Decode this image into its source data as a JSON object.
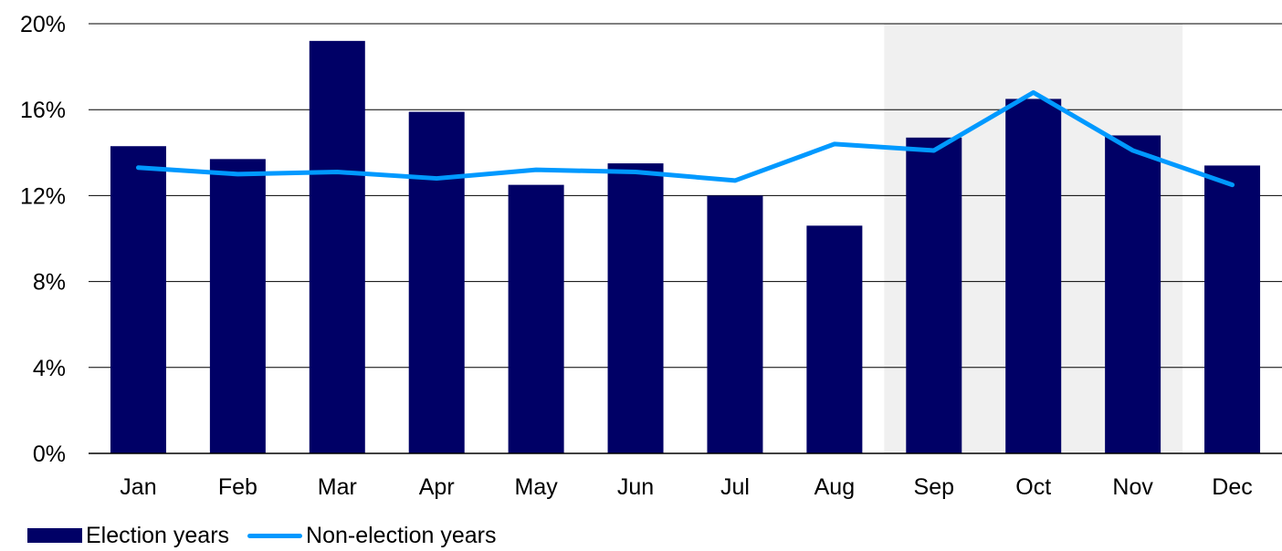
{
  "chart_data": {
    "type": "bar",
    "categories": [
      "Jan",
      "Feb",
      "Mar",
      "Apr",
      "May",
      "Jun",
      "Jul",
      "Aug",
      "Sep",
      "Oct",
      "Nov",
      "Dec"
    ],
    "series": [
      {
        "name": "Election years",
        "type": "bar",
        "color": "#000066",
        "values": [
          14.3,
          13.7,
          19.2,
          15.9,
          12.5,
          13.5,
          12.0,
          10.6,
          14.7,
          16.5,
          14.8,
          13.4
        ]
      },
      {
        "name": "Non-election years",
        "type": "line",
        "color": "#0099ff",
        "values": [
          13.3,
          13.0,
          13.1,
          12.8,
          13.2,
          13.1,
          12.7,
          14.4,
          14.1,
          16.8,
          14.1,
          12.5
        ]
      }
    ],
    "ylim": [
      0,
      20
    ],
    "yticks": [
      "0%",
      "4%",
      "8%",
      "12%",
      "16%",
      "20%"
    ],
    "ytick_values": [
      0,
      4,
      8,
      12,
      16,
      20
    ],
    "highlight": {
      "from": "Sep",
      "to": "Nov",
      "color": "#f0f0f0"
    },
    "grid": true,
    "legend_position": "bottom-left",
    "title": "",
    "xlabel": "",
    "ylabel": ""
  }
}
